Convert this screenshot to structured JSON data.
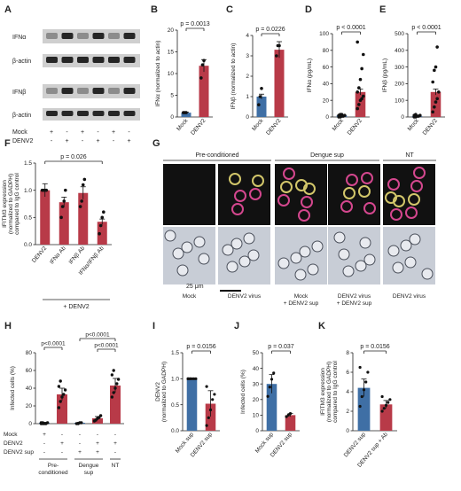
{
  "colors": {
    "mock": "#3f6fa5",
    "denv": "#b83a48",
    "mic_bg": "#111111",
    "bf_bg": "#c8cdd6",
    "rna": "#d4478e",
    "env": "#d2c66a"
  },
  "panels": {
    "A": "A",
    "B": "B",
    "C": "C",
    "D": "D",
    "E": "E",
    "F": "F",
    "G": "G",
    "H": "H",
    "I": "I",
    "J": "J",
    "K": "K"
  },
  "blot": {
    "rows": [
      "IFNα",
      "β-actin",
      "IFNβ",
      "β-actin"
    ],
    "cond_labels": [
      "Mock",
      "DENV2"
    ],
    "mock_signs": [
      "+",
      "-",
      "+",
      "-",
      "+",
      "-"
    ],
    "denv_signs": [
      "-",
      "+",
      "-",
      "+",
      "-",
      "+"
    ]
  },
  "panelG": {
    "groups": [
      "Pre-conditioned",
      "Dengue sup",
      "NT"
    ],
    "bottom_labels": [
      "Mock",
      "DENV2 virus",
      "Mock\n+ DENV2 sup",
      "DENV2 virus\n+ DENV2 sup",
      "DENV2 virus"
    ],
    "scale_bar": "25 μm"
  },
  "chart_data": [
    {
      "panel": "B",
      "type": "bar",
      "categories": [
        "Mock",
        "DENV2"
      ],
      "values": [
        1.0,
        11.8
      ],
      "ylabel": "IFNα (normalized to actin)",
      "ylim": [
        0,
        20
      ],
      "yticks": [
        0,
        5,
        10,
        15,
        20
      ],
      "pvalue": "p = 0.0013",
      "points": [
        [
          1,
          1,
          1
        ],
        [
          9,
          12,
          13
        ]
      ]
    },
    {
      "panel": "C",
      "type": "bar",
      "categories": [
        "Mock",
        "DENV2"
      ],
      "values": [
        1.0,
        3.3
      ],
      "ylabel": "IFNβ (normalized to actin)",
      "ylim": [
        0,
        4
      ],
      "yticks": [
        0,
        1,
        2,
        3,
        4
      ],
      "pvalue": "p = 0.0226",
      "points": [
        [
          0.6,
          1.0,
          1.4
        ],
        [
          3.0,
          3.5,
          3.5
        ]
      ]
    },
    {
      "panel": "D",
      "type": "bar",
      "categories": [
        "Mock",
        "DENV2"
      ],
      "values": [
        2,
        30
      ],
      "ylabel": "IFNα (pg/mL)",
      "ylim": [
        0,
        100
      ],
      "yticks": [
        0,
        20,
        40,
        60,
        80,
        100
      ],
      "pvalue": "p < 0.0001",
      "points": [
        [
          0,
          0,
          1,
          1,
          2,
          2,
          3,
          3
        ],
        [
          10,
          15,
          20,
          22,
          25,
          30,
          35,
          45,
          58,
          75,
          90
        ]
      ]
    },
    {
      "panel": "E",
      "type": "bar",
      "categories": [
        "Mock",
        "DENV2"
      ],
      "values": [
        5,
        150
      ],
      "ylabel": "IFNβ (pg/mL)",
      "ylim": [
        0,
        500
      ],
      "yticks": [
        0,
        100,
        200,
        300,
        400,
        500
      ],
      "pvalue": "p < 0.0001",
      "points": [
        [
          0,
          0,
          5,
          5,
          10,
          10,
          15
        ],
        [
          30,
          60,
          90,
          110,
          150,
          210,
          280,
          300,
          420
        ]
      ]
    },
    {
      "panel": "F",
      "type": "bar",
      "categories": [
        "DENV2",
        "IFNα Ab",
        "IFNβ Ab",
        "IFNα/IFNβ Ab"
      ],
      "values": [
        1.0,
        0.78,
        0.95,
        0.42
      ],
      "ylabel": "IFITM3 expression (normalized to GADPH) compared to IgG control",
      "ylim": [
        0,
        1.5
      ],
      "yticks": [
        0.0,
        0.5,
        1.0,
        1.5
      ],
      "pvalue": "p = 0.026",
      "xnote": "+ DENV2",
      "points": [
        [
          1,
          1,
          1,
          1
        ],
        [
          0.5,
          0.7,
          0.8,
          1.0
        ],
        [
          0.7,
          0.8,
          1.1,
          1.2
        ],
        [
          0.2,
          0.35,
          0.5,
          0.6
        ]
      ]
    },
    {
      "panel": "H",
      "type": "bar",
      "categories": [
        "Mock",
        "DENV2",
        "Mock",
        "DENV2",
        "DENV2"
      ],
      "values": [
        1,
        33,
        1,
        6,
        43
      ],
      "ylabel": "Infected cells (%)",
      "ylim": [
        0,
        80
      ],
      "yticks": [
        0,
        20,
        40,
        60,
        80
      ],
      "pvalues": [
        "p<0.0001",
        "p<0.0001",
        "p<0.0001"
      ],
      "rows": {
        "Mock": [
          "+",
          "-",
          "-",
          "-",
          "-"
        ],
        "DENV2": [
          "-",
          "+",
          "-",
          "+",
          "+"
        ],
        "DENV2 sup": [
          "-",
          "-",
          "+",
          "+",
          "-"
        ]
      },
      "groups": [
        "Pre-\nconditioned",
        "Dengue\nsup",
        "NT"
      ]
    },
    {
      "panel": "I",
      "type": "bar",
      "categories": [
        "Mock sup",
        "DENV2 sup"
      ],
      "values": [
        1.0,
        0.52
      ],
      "ylabel": "DENV2 (normalized to GADPH)",
      "ylim": [
        0,
        1.5
      ],
      "yticks": [
        0.0,
        0.5,
        1.0,
        1.5
      ],
      "pvalue": "p = 0.0156"
    },
    {
      "panel": "J",
      "type": "bar",
      "categories": [
        "Mock sup",
        "DENV2 sup"
      ],
      "values": [
        30,
        10
      ],
      "ylabel": "Infected cells (%)",
      "ylim": [
        0,
        50
      ],
      "yticks": [
        0,
        10,
        20,
        30,
        40,
        50
      ],
      "pvalue": "p = 0.037"
    },
    {
      "panel": "K",
      "type": "bar",
      "categories": [
        "DENV2 sup",
        "DENV2 sup + Ab"
      ],
      "values": [
        4.4,
        2.7
      ],
      "ylabel": "IFITM3 expression (normalized to GADPH) compared to IgG control",
      "ylim": [
        0,
        8
      ],
      "yticks": [
        0,
        2,
        4,
        6,
        8
      ],
      "pvalue": "p = 0.0156"
    }
  ]
}
